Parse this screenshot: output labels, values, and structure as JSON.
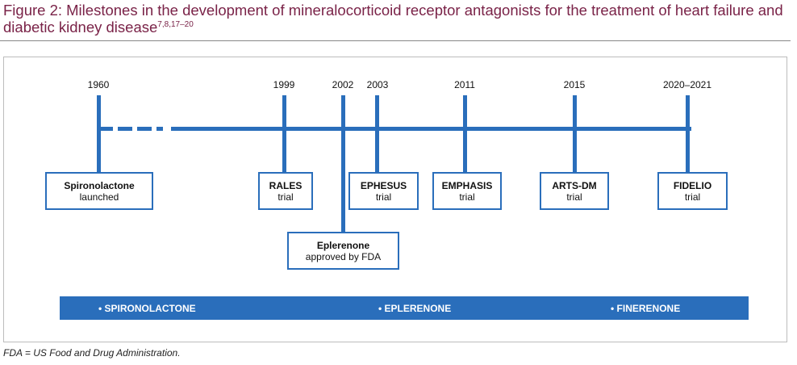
{
  "title": {
    "text": "Figure 2: Milestones in the development of mineralocorticoid receptor antagonists for the treatment of heart failure and diabetic kidney disease",
    "refs": "7,8,17–20"
  },
  "timeline": {
    "years": [
      "1960",
      "1999",
      "2002",
      "2003",
      "2011",
      "2015",
      "2020–2021"
    ],
    "events": [
      {
        "name": "Spironolactone",
        "detail": "launched"
      },
      {
        "name": "RALES",
        "detail": "trial"
      },
      {
        "name": "Eplerenone",
        "detail": "approved by FDA"
      },
      {
        "name": "EPHESUS",
        "detail": "trial"
      },
      {
        "name": "EMPHASIS",
        "detail": "trial"
      },
      {
        "name": "ARTS-DM",
        "detail": "trial"
      },
      {
        "name": "FIDELIO",
        "detail": "trial"
      }
    ]
  },
  "band": [
    "• SPIRONOLACTONE",
    "• EPLERENONE",
    "• FINERENONE"
  ],
  "footnote": "FDA = US Food and Drug Administration.",
  "colors": {
    "accent": "#2a6ebb",
    "title": "#7a2348"
  }
}
